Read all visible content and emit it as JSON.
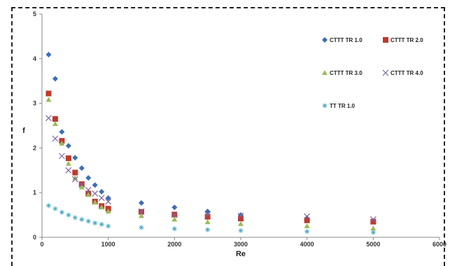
{
  "chart_data": {
    "type": "scatter",
    "title": "",
    "xlabel": "Re",
    "ylabel": "f",
    "xlim": [
      0,
      6000
    ],
    "ylim": [
      0,
      5
    ],
    "xticks": [
      0,
      1000,
      2000,
      3000,
      4000,
      5000,
      6000
    ],
    "yticks": [
      0,
      1,
      2,
      3,
      4,
      5
    ],
    "grid": false,
    "legend": "top-right",
    "series": [
      {
        "name": "CTTT  TR 1.0",
        "marker": "diamond",
        "color": "#3B6FB6",
        "x": [
          100,
          200,
          300,
          400,
          500,
          600,
          700,
          800,
          900,
          1000,
          1500,
          2000,
          2500,
          3000,
          4000,
          5000
        ],
        "y": [
          4.09,
          3.55,
          2.36,
          2.05,
          1.78,
          1.55,
          1.33,
          1.17,
          1.02,
          0.88,
          0.77,
          0.67,
          0.58,
          0.5,
          0.43,
          0.36
        ]
      },
      {
        "name": "CTTT  TR 2.0",
        "marker": "square",
        "color": "#C0392B",
        "x": [
          100,
          200,
          300,
          400,
          500,
          600,
          700,
          800,
          900,
          1000,
          1500,
          2000,
          2500,
          3000,
          4000,
          5000
        ],
        "y": [
          3.22,
          2.65,
          2.16,
          1.77,
          1.45,
          1.19,
          0.98,
          0.8,
          0.7,
          0.64,
          0.57,
          0.51,
          0.46,
          0.42,
          0.38,
          0.35
        ]
      },
      {
        "name": "CTTT  TR 3.0",
        "marker": "triangle",
        "color": "#9BBB59",
        "x": [
          100,
          200,
          300,
          400,
          500,
          600,
          700,
          800,
          900,
          1000,
          1500,
          2000,
          2500,
          3000,
          4000,
          5000
        ],
        "y": [
          3.08,
          2.54,
          2.1,
          1.65,
          1.33,
          1.12,
          0.95,
          0.78,
          0.67,
          0.58,
          0.48,
          0.4,
          0.34,
          0.3,
          0.25,
          0.2
        ]
      },
      {
        "name": "CTTT  TR 4.0",
        "marker": "x",
        "color": "#8064A2",
        "x": [
          100,
          200,
          300,
          400,
          500,
          600,
          700,
          800,
          900,
          1000,
          1500,
          2000,
          2500,
          3000,
          4000,
          5000
        ],
        "y": [
          2.67,
          2.21,
          1.82,
          1.5,
          1.3,
          1.18,
          1.06,
          0.98,
          0.88,
          0.8,
          0.58,
          0.5,
          0.51,
          0.48,
          0.47,
          0.4
        ]
      },
      {
        "name": "TT TR 1.0",
        "marker": "star",
        "color": "#4BACC6",
        "x": [
          100,
          200,
          300,
          400,
          500,
          600,
          700,
          800,
          900,
          1000,
          1500,
          2000,
          2500,
          3000,
          4000,
          5000
        ],
        "y": [
          0.71,
          0.64,
          0.56,
          0.5,
          0.44,
          0.4,
          0.36,
          0.32,
          0.29,
          0.25,
          0.22,
          0.19,
          0.17,
          0.15,
          0.13,
          0.11
        ]
      }
    ]
  }
}
